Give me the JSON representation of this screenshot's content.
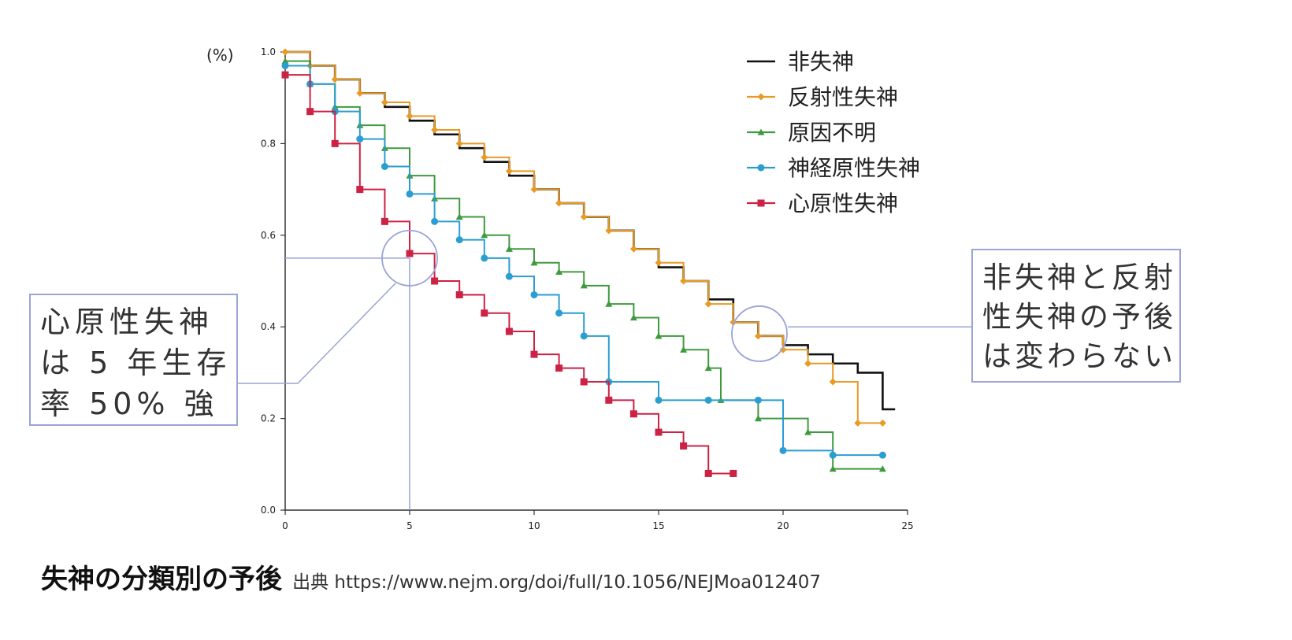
{
  "chart_data": {
    "type": "line",
    "title": "失神の分類別の予後",
    "source_label": "出典",
    "source_url": "https://www.nejm.org/doi/full/10.1056/NEJMoa012407",
    "ylabel": "(%)",
    "xlabel": "",
    "xlim": [
      0,
      25
    ],
    "ylim": [
      0,
      1.0
    ],
    "xticks": [
      "0",
      "5",
      "10",
      "15",
      "20",
      "25"
    ],
    "yticks": [
      "0.0",
      "0.2",
      "0.4",
      "0.6",
      "0.8",
      "1.0"
    ],
    "series": [
      {
        "name": "非失神",
        "color": "#111111",
        "marker": "none",
        "x": [
          0,
          1,
          2,
          3,
          4,
          5,
          6,
          7,
          8,
          9,
          10,
          11,
          12,
          13,
          14,
          15,
          16,
          17,
          18,
          19,
          20,
          21,
          22,
          23,
          24,
          24.5
        ],
        "y": [
          1.0,
          0.97,
          0.94,
          0.91,
          0.88,
          0.85,
          0.82,
          0.79,
          0.76,
          0.73,
          0.7,
          0.67,
          0.64,
          0.61,
          0.57,
          0.53,
          0.5,
          0.46,
          0.41,
          0.38,
          0.36,
          0.34,
          0.32,
          0.3,
          0.22,
          0.22
        ]
      },
      {
        "name": "反射性失神",
        "color": "#e89a23",
        "marker": "diamond",
        "x": [
          0,
          1,
          2,
          3,
          4,
          5,
          6,
          7,
          8,
          9,
          10,
          11,
          12,
          13,
          14,
          15,
          16,
          17,
          18,
          19,
          20,
          21,
          22,
          23,
          24
        ],
        "y": [
          1.0,
          0.97,
          0.94,
          0.91,
          0.89,
          0.86,
          0.83,
          0.8,
          0.77,
          0.74,
          0.7,
          0.67,
          0.64,
          0.61,
          0.57,
          0.54,
          0.5,
          0.45,
          0.41,
          0.38,
          0.35,
          0.32,
          0.28,
          0.19,
          0.19
        ]
      },
      {
        "name": "原因不明",
        "color": "#3f9a3f",
        "marker": "triangle",
        "x": [
          0,
          1,
          2,
          3,
          4,
          5,
          6,
          7,
          8,
          9,
          10,
          11,
          12,
          13,
          14,
          15,
          16,
          17,
          17.5,
          19,
          21,
          22,
          24
        ],
        "y": [
          0.98,
          0.93,
          0.88,
          0.84,
          0.79,
          0.73,
          0.68,
          0.64,
          0.6,
          0.57,
          0.54,
          0.52,
          0.49,
          0.45,
          0.42,
          0.38,
          0.35,
          0.31,
          0.24,
          0.2,
          0.17,
          0.09,
          0.09
        ]
      },
      {
        "name": "神経原性失神",
        "color": "#2a9ed0",
        "marker": "circle",
        "x": [
          0,
          1,
          2,
          3,
          4,
          5,
          6,
          7,
          8,
          9,
          10,
          11,
          12,
          13,
          15,
          17,
          19,
          20,
          22,
          24
        ],
        "y": [
          0.97,
          0.93,
          0.87,
          0.81,
          0.75,
          0.69,
          0.63,
          0.59,
          0.55,
          0.51,
          0.47,
          0.43,
          0.38,
          0.28,
          0.24,
          0.24,
          0.24,
          0.13,
          0.12,
          0.12
        ]
      },
      {
        "name": "心原性失神",
        "color": "#cc2244",
        "marker": "square",
        "x": [
          0,
          1,
          2,
          3,
          4,
          5,
          6,
          7,
          8,
          9,
          10,
          11,
          12,
          13,
          14,
          15,
          16,
          17,
          18
        ],
        "y": [
          0.95,
          0.87,
          0.8,
          0.7,
          0.63,
          0.56,
          0.5,
          0.47,
          0.43,
          0.39,
          0.34,
          0.31,
          0.28,
          0.24,
          0.21,
          0.17,
          0.14,
          0.08,
          0.08
        ]
      }
    ],
    "annotations": {
      "left_lines": [
        "心原性失神",
        "は 5 年生存",
        "率 50% 強"
      ],
      "right_lines": [
        "非失神と反射",
        "性失神の予後",
        "は変わらない"
      ]
    }
  }
}
